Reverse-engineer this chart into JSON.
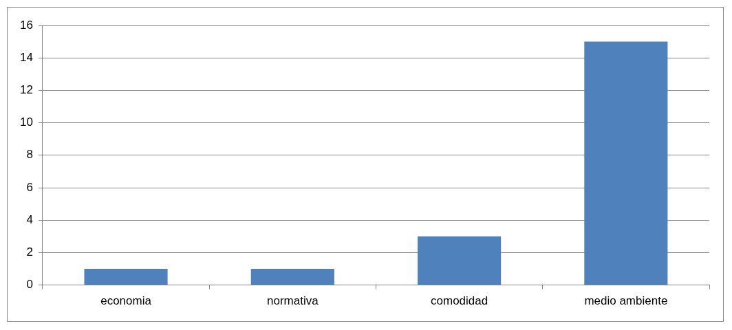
{
  "chart_data": {
    "type": "bar",
    "categories": [
      "economia",
      "normativa",
      "comodidad",
      "medio ambiente"
    ],
    "values": [
      1,
      1,
      3,
      15
    ],
    "color": "#4f81bd",
    "ylim": [
      0,
      16
    ],
    "yticks": [
      0,
      2,
      4,
      6,
      8,
      10,
      12,
      14,
      16
    ],
    "grid": "y",
    "legend": false
  }
}
